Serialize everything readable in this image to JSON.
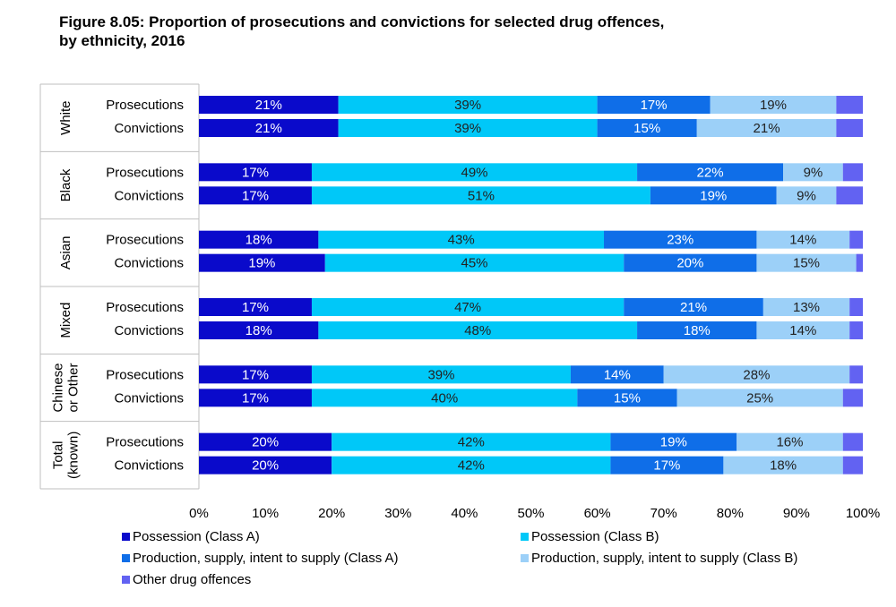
{
  "chart_data": {
    "type": "bar",
    "orientation": "horizontal",
    "stacked": true,
    "percent": true,
    "title_lines": [
      "Figure 8.05: Proportion of prosecutions and convictions for selected drug offences,",
      "by ethnicity, 2016"
    ],
    "groups": [
      {
        "name": [
          "White"
        ],
        "rows": [
          {
            "label": "Prosecutions",
            "values": [
              21,
              39,
              17,
              19,
              4
            ]
          },
          {
            "label": "Convictions",
            "values": [
              21,
              39,
              15,
              21,
              4
            ]
          }
        ]
      },
      {
        "name": [
          "Black"
        ],
        "rows": [
          {
            "label": "Prosecutions",
            "values": [
              17,
              49,
              22,
              9,
              3
            ]
          },
          {
            "label": "Convictions",
            "values": [
              17,
              51,
              19,
              9,
              4
            ]
          }
        ]
      },
      {
        "name": [
          "Asian"
        ],
        "rows": [
          {
            "label": "Prosecutions",
            "values": [
              18,
              43,
              23,
              14,
              2
            ]
          },
          {
            "label": "Convictions",
            "values": [
              19,
              45,
              20,
              15,
              1
            ]
          }
        ]
      },
      {
        "name": [
          "Mixed"
        ],
        "rows": [
          {
            "label": "Prosecutions",
            "values": [
              17,
              47,
              21,
              13,
              2
            ]
          },
          {
            "label": "Convictions",
            "values": [
              18,
              48,
              18,
              14,
              2
            ]
          }
        ]
      },
      {
        "name": [
          "Chinese",
          "or Other"
        ],
        "rows": [
          {
            "label": "Prosecutions",
            "values": [
              17,
              39,
              14,
              28,
              2
            ]
          },
          {
            "label": "Convictions",
            "values": [
              17,
              40,
              15,
              25,
              3
            ]
          }
        ]
      },
      {
        "name": [
          "Total",
          "(known)"
        ],
        "rows": [
          {
            "label": "Prosecutions",
            "values": [
              20,
              42,
              19,
              16,
              3
            ]
          },
          {
            "label": "Convictions",
            "values": [
              20,
              42,
              17,
              18,
              3
            ]
          }
        ]
      }
    ],
    "series": [
      {
        "name": "Possession (Class A)",
        "color": "#0A0ACB",
        "label_color": "#ffffff"
      },
      {
        "name": "Possession (Class B)",
        "color": "#00C8F8",
        "label_color": "#222222"
      },
      {
        "name": "Production, supply, intent to supply (Class A)",
        "color": "#0F6EE8",
        "label_color": "#ffffff"
      },
      {
        "name": "Production, supply, intent to supply (Class B)",
        "color": "#9CD0F8",
        "label_color": "#222222"
      },
      {
        "name": "Other drug offences",
        "color": "#6262F2",
        "label_color": "#222222"
      }
    ],
    "show_label_min": 5,
    "xlim": [
      0,
      100
    ],
    "xticks": [
      "0%",
      "10%",
      "20%",
      "30%",
      "40%",
      "50%",
      "60%",
      "70%",
      "80%",
      "90%",
      "100%"
    ],
    "legend_position": "bottom"
  }
}
